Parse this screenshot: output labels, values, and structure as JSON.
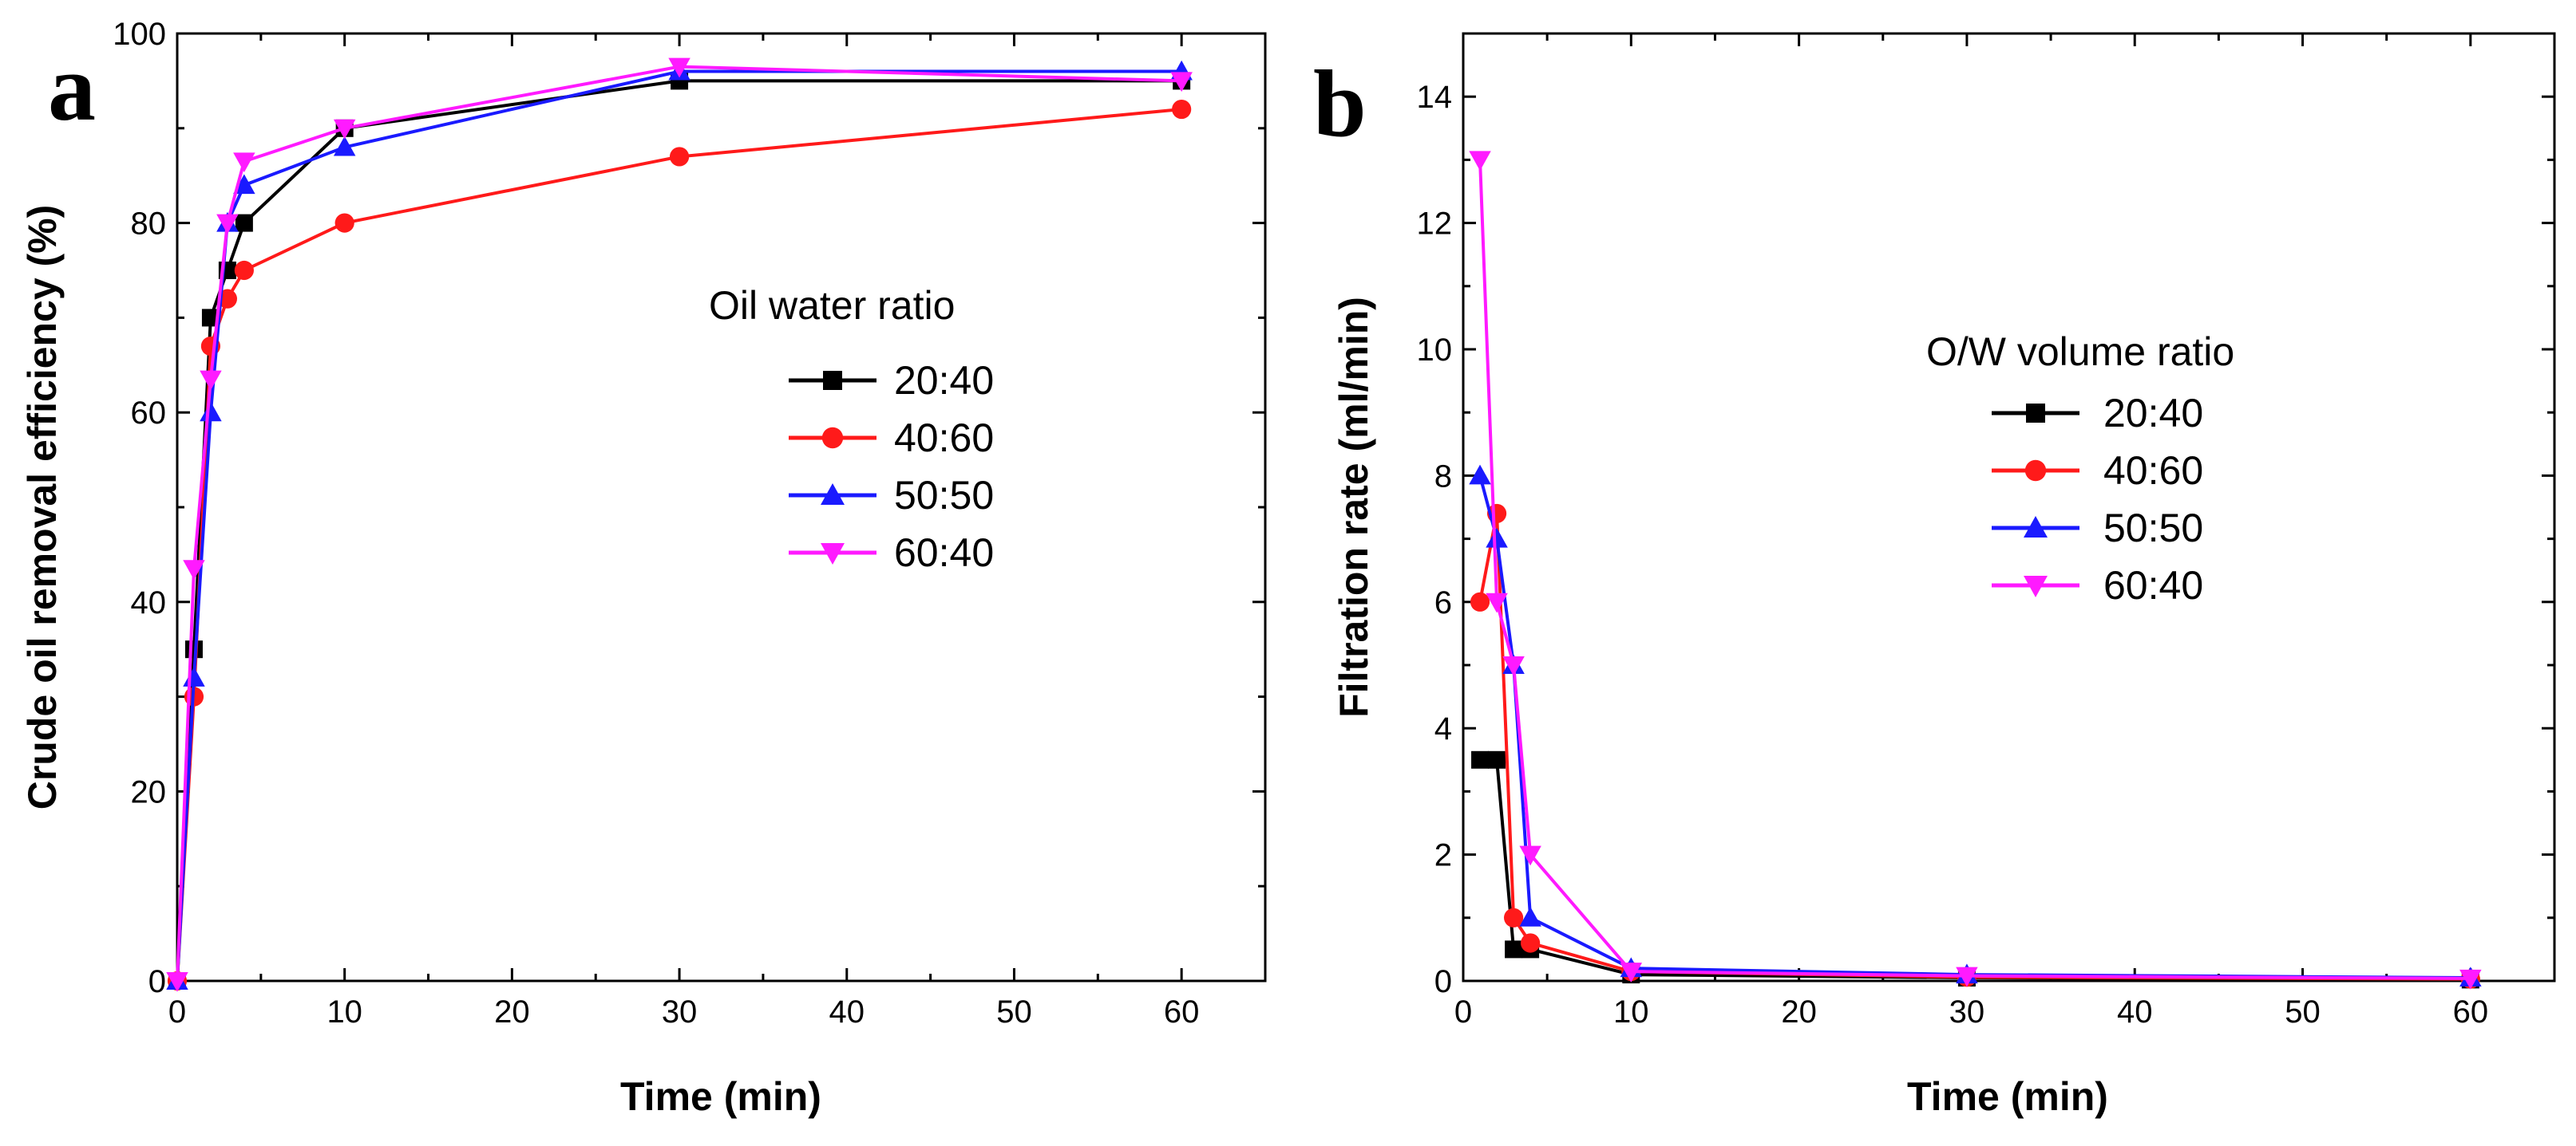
{
  "chart_data": [
    {
      "panel": "a",
      "type": "line",
      "title": "",
      "xlabel": "Time (min)",
      "ylabel": "Crude oil removal efficiency (%)",
      "xlim": [
        0,
        65
      ],
      "ylim": [
        0,
        100
      ],
      "xticks": [
        0,
        10,
        20,
        30,
        40,
        50,
        60
      ],
      "yticks": [
        0,
        20,
        40,
        60,
        80,
        100
      ],
      "legend_title": "Oil water ratio",
      "legend_position": "center-right",
      "series": [
        {
          "name": "20:40",
          "color": "#000000",
          "marker": "square",
          "x": [
            0,
            1,
            2,
            3,
            4,
            10,
            30,
            60
          ],
          "y": [
            0,
            35,
            70,
            75,
            80,
            90,
            95,
            95
          ]
        },
        {
          "name": "40:60",
          "color": "#ff1a1a",
          "marker": "circle",
          "x": [
            0,
            1,
            2,
            3,
            4,
            10,
            30,
            60
          ],
          "y": [
            0,
            30,
            67,
            72,
            75,
            80,
            87,
            92
          ]
        },
        {
          "name": "50:50",
          "color": "#1a1aff",
          "marker": "triangle-up",
          "x": [
            0,
            1,
            2,
            3,
            4,
            10,
            30,
            60
          ],
          "y": [
            0,
            32,
            60,
            80,
            84,
            88,
            96,
            96
          ]
        },
        {
          "name": "60:40",
          "color": "#ff1aff",
          "marker": "triangle-down",
          "x": [
            0,
            1,
            2,
            3,
            4,
            10,
            30,
            60
          ],
          "y": [
            0,
            43.5,
            63.5,
            80,
            86.5,
            90,
            96.5,
            95
          ]
        }
      ]
    },
    {
      "panel": "b",
      "type": "line",
      "title": "",
      "xlabel": "Time (min)",
      "ylabel": "Filtration rate (ml/min)",
      "xlim": [
        0,
        65
      ],
      "ylim": [
        0,
        15
      ],
      "xticks": [
        0,
        10,
        20,
        30,
        40,
        50,
        60
      ],
      "yticks": [
        0,
        2,
        4,
        6,
        8,
        10,
        12,
        14
      ],
      "legend_title": "O/W volume ratio",
      "legend_position": "center-right",
      "series": [
        {
          "name": "20:40",
          "color": "#000000",
          "marker": "square",
          "x": [
            1,
            2,
            3,
            4,
            10,
            30,
            60
          ],
          "y": [
            3.5,
            3.5,
            0.5,
            0.5,
            0.1,
            0.05,
            0.02
          ]
        },
        {
          "name": "40:60",
          "color": "#ff1a1a",
          "marker": "circle",
          "x": [
            1,
            2,
            3,
            4,
            10,
            30,
            60
          ],
          "y": [
            6,
            7.4,
            1,
            0.6,
            0.15,
            0.06,
            0.03
          ]
        },
        {
          "name": "50:50",
          "color": "#1a1aff",
          "marker": "triangle-up",
          "x": [
            1,
            2,
            3,
            4,
            10,
            30,
            60
          ],
          "y": [
            8,
            7,
            5,
            1,
            0.2,
            0.1,
            0.05
          ]
        },
        {
          "name": "60:40",
          "color": "#ff1aff",
          "marker": "triangle-down",
          "x": [
            1,
            2,
            3,
            4,
            10,
            30,
            60
          ],
          "y": [
            13,
            6,
            5,
            2,
            0.15,
            0.08,
            0.04
          ]
        }
      ]
    }
  ]
}
